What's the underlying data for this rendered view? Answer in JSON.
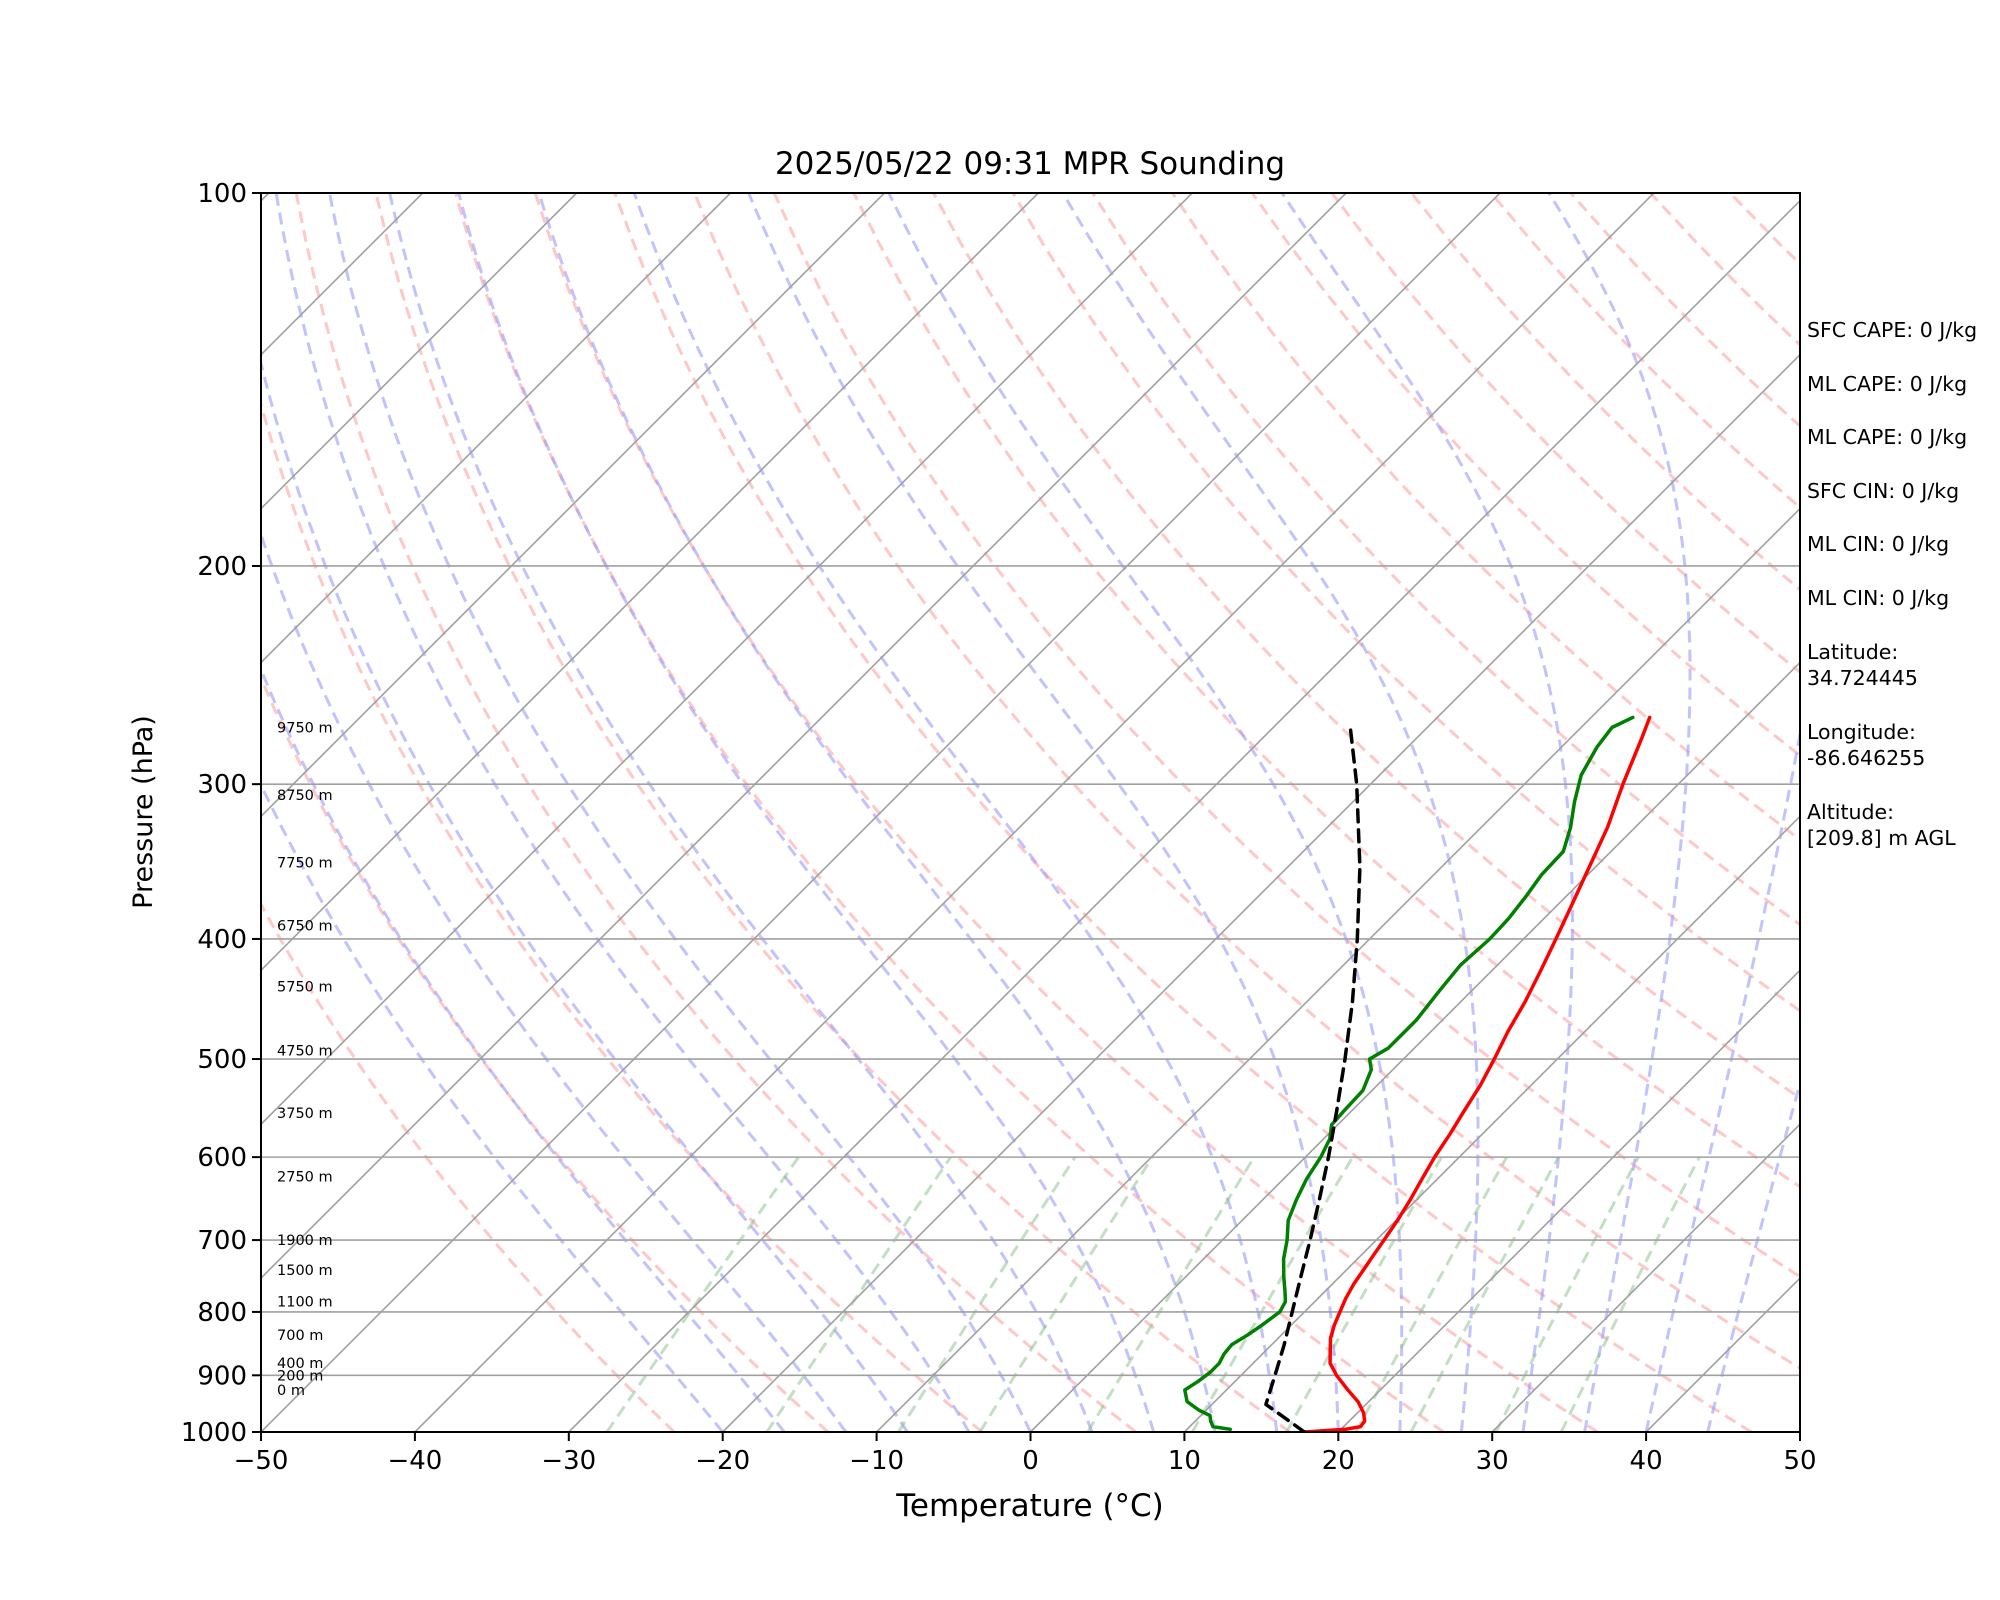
{
  "chart_data": {
    "type": "line",
    "title": "2025/05/22 09:31 MPR Sounding",
    "xlabel": "Temperature (°C)",
    "ylabel": "Pressure (hPa)",
    "xlim": [
      -50,
      50
    ],
    "ylim": [
      1000,
      100
    ],
    "y_scale": "log",
    "skew": "skew-T log-P",
    "grid": true,
    "x_ticks": [
      "−50",
      "−40",
      "−30",
      "−20",
      "−10",
      "0",
      "10",
      "20",
      "30",
      "40",
      "50"
    ],
    "y_ticks": [
      "100",
      "200",
      "300",
      "400",
      "500",
      "600",
      "700",
      "800",
      "900",
      "1000"
    ],
    "series": [
      {
        "color": "#ff0000",
        "style": "solid",
        "points": [
          [
            1000,
            17.8
          ],
          [
            995,
            20.3
          ],
          [
            990,
            21.1
          ],
          [
            980,
            21.0
          ],
          [
            965,
            20.4
          ],
          [
            945,
            19.3
          ],
          [
            925,
            17.9
          ],
          [
            900,
            16.2
          ],
          [
            880,
            15.0
          ],
          [
            860,
            14.2
          ],
          [
            840,
            13.4
          ],
          [
            820,
            12.8
          ],
          [
            800,
            12.3
          ],
          [
            780,
            11.8
          ],
          [
            760,
            11.4
          ],
          [
            740,
            11.1
          ],
          [
            720,
            10.8
          ],
          [
            700,
            10.5
          ],
          [
            675,
            10.1
          ],
          [
            650,
            9.6
          ],
          [
            625,
            9.0
          ],
          [
            600,
            8.4
          ],
          [
            575,
            7.9
          ],
          [
            550,
            7.3
          ],
          [
            525,
            6.7
          ],
          [
            500,
            5.9
          ],
          [
            475,
            5.0
          ],
          [
            450,
            4.2
          ],
          [
            425,
            3.2
          ],
          [
            400,
            2.1
          ],
          [
            375,
            0.9
          ],
          [
            350,
            -0.4
          ],
          [
            325,
            -1.8
          ],
          [
            300,
            -3.6
          ],
          [
            275,
            -5.4
          ],
          [
            265,
            -6.2
          ]
        ]
      },
      {
        "color": "#008000",
        "style": "solid",
        "points": [
          [
            995,
            12.8
          ],
          [
            990,
            11.5
          ],
          [
            980,
            11.0
          ],
          [
            970,
            10.6
          ],
          [
            960,
            9.5
          ],
          [
            945,
            8.2
          ],
          [
            925,
            7.3
          ],
          [
            910,
            7.6
          ],
          [
            895,
            7.8
          ],
          [
            880,
            7.8
          ],
          [
            865,
            7.5
          ],
          [
            850,
            7.4
          ],
          [
            835,
            7.8
          ],
          [
            820,
            8.1
          ],
          [
            800,
            8.4
          ],
          [
            785,
            8.1
          ],
          [
            770,
            7.4
          ],
          [
            750,
            6.4
          ],
          [
            725,
            5.2
          ],
          [
            700,
            4.2
          ],
          [
            675,
            3.0
          ],
          [
            650,
            2.2
          ],
          [
            625,
            1.5
          ],
          [
            600,
            1.0
          ],
          [
            580,
            0.4
          ],
          [
            565,
            -0.4
          ],
          [
            550,
            -0.5
          ],
          [
            530,
            -0.6
          ],
          [
            510,
            -1.4
          ],
          [
            500,
            -2.2
          ],
          [
            490,
            -1.7
          ],
          [
            480,
            -1.7
          ],
          [
            465,
            -1.7
          ],
          [
            440,
            -2.1
          ],
          [
            420,
            -2.4
          ],
          [
            400,
            -2.2
          ],
          [
            385,
            -2.3
          ],
          [
            370,
            -2.6
          ],
          [
            355,
            -3.0
          ],
          [
            340,
            -3.1
          ],
          [
            325,
            -4.2
          ],
          [
            310,
            -5.6
          ],
          [
            295,
            -6.9
          ],
          [
            280,
            -7.7
          ],
          [
            270,
            -8.0
          ],
          [
            265,
            -7.3
          ]
        ]
      },
      {
        "color": "#000000",
        "style": "dashed",
        "points": [
          [
            1000,
            17.8
          ],
          [
            950,
            13.5
          ],
          [
            900,
            12.2
          ],
          [
            850,
            10.8
          ],
          [
            800,
            9.2
          ],
          [
            750,
            7.5
          ],
          [
            700,
            5.7
          ],
          [
            650,
            3.7
          ],
          [
            600,
            1.5
          ],
          [
            550,
            -1.0
          ],
          [
            500,
            -3.8
          ],
          [
            450,
            -7.0
          ],
          [
            400,
            -10.8
          ],
          [
            350,
            -15.3
          ],
          [
            300,
            -20.9
          ],
          [
            270,
            -25.0
          ]
        ]
      }
    ],
    "height_labels": [
      "9750 m",
      "8750 m",
      "7750 m",
      "6750 m",
      "5750 m",
      "4750 m",
      "3750 m",
      "2750 m",
      "1900 m",
      "1500 m",
      "1100 m",
      "700 m",
      "400 m",
      "200 m",
      "0 m"
    ],
    "height_label_pressures": [
      270,
      306,
      347,
      390,
      437,
      492,
      553,
      622,
      700,
      740,
      785,
      835,
      880,
      900,
      925
    ],
    "background_lines": {
      "dry_adiabats_color": "#ff9999",
      "moist_adiabats_color": "#9999ff",
      "mixing_ratio_color": "#88c088",
      "isotherms_color": "#a0a0a0"
    }
  },
  "stats": {
    "sfc_cape": "SFC CAPE: 0 J/kg",
    "ml_cape": "ML CAPE: 0 J/kg",
    "ml_cape_2": "ML CAPE: 0 J/kg",
    "sfc_cin": "SFC CIN: 0 J/kg",
    "ml_cin": "ML CIN: 0 J/kg",
    "ml_cin_2": "ML CIN: 0 J/kg",
    "latitude_label": "Latitude:",
    "latitude_value": "34.724445",
    "longitude_label": "Longitude:",
    "longitude_value": "-86.646255",
    "altitude_label": "Altitude:",
    "altitude_value": "[209.8] m AGL"
  }
}
